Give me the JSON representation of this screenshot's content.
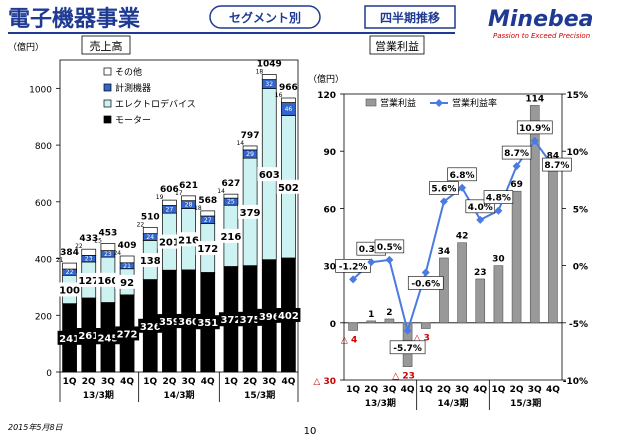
{
  "header": {
    "title": "電子機器事業",
    "segment_label": "セグメント別",
    "period_label": "四半期推移",
    "logo_name": "Minebea",
    "logo_tagline": "Passion to Exceed Precision",
    "accent_color": "#1f3a93"
  },
  "footer": {
    "date": "2015年5月8日",
    "page_number": "10"
  },
  "quarter_labels": [
    "1Q",
    "2Q",
    "3Q",
    "4Q",
    "1Q",
    "2Q",
    "3Q",
    "4Q",
    "1Q",
    "2Q",
    "3Q",
    "4Q"
  ],
  "fiscal_year_labels": [
    "13/3期",
    "14/3期",
    "15/3期"
  ],
  "chart_data": [
    {
      "type": "bar",
      "stacked": true,
      "title": "売上高",
      "ylabel": "（億円）",
      "ylim": [
        0,
        1100
      ],
      "yticks": [
        0,
        200,
        400,
        600,
        800,
        1000
      ],
      "categories": [
        "13/3期 1Q",
        "13/3期 2Q",
        "13/3期 3Q",
        "13/3期 4Q",
        "14/3期 1Q",
        "14/3期 2Q",
        "14/3期 3Q",
        "14/3期 4Q",
        "15/3期 1Q",
        "15/3期 2Q",
        "15/3期 3Q",
        "15/3期 4Q"
      ],
      "series": [
        {
          "name": "モーター",
          "color": "#000000",
          "values": [
            241,
            261,
            245,
            272,
            326,
            359,
            360,
            351,
            372,
            375,
            396,
            402
          ]
        },
        {
          "name": "エレクトロデバイス",
          "color": "#ccf2f2",
          "values": [
            100,
            127,
            160,
            92,
            138,
            201,
            216,
            172,
            216,
            379,
            603,
            502
          ]
        },
        {
          "name": "計測機器",
          "color": "#3366cc",
          "values": [
            22,
            23,
            23,
            21,
            24,
            27,
            28,
            27,
            25,
            29,
            32,
            46
          ]
        },
        {
          "name": "その他",
          "color": "#ffffff",
          "values": [
            21,
            22,
            25,
            24,
            22,
            19,
            17,
            18,
            14,
            14,
            18,
            16
          ]
        }
      ],
      "totals": [
        384,
        433,
        453,
        409,
        510,
        606,
        621,
        568,
        627,
        797,
        1049,
        966
      ],
      "legend": [
        "その他",
        "計測機器",
        "エレクトロデバイス",
        "モーター"
      ],
      "legend_position": "top-left"
    },
    {
      "type": "bar+line",
      "title": "営業利益",
      "ylabel": "（億円）",
      "ylim": [
        -30,
        120
      ],
      "yticks": [
        -30,
        0,
        30,
        60,
        90,
        120
      ],
      "ytick_labels": [
        "△ 30",
        "0",
        "30",
        "60",
        "90",
        "120"
      ],
      "y2lim": [
        -10,
        15
      ],
      "y2ticks": [
        "-10%",
        "-5%",
        "0%",
        "5%",
        "10%",
        "15%"
      ],
      "categories": [
        "13/3期 1Q",
        "13/3期 2Q",
        "13/3期 3Q",
        "13/3期 4Q",
        "14/3期 1Q",
        "14/3期 2Q",
        "14/3期 3Q",
        "14/3期 4Q",
        "15/3期 1Q",
        "15/3期 2Q",
        "15/3期 3Q",
        "15/3期 4Q"
      ],
      "series": [
        {
          "name": "営業利益",
          "type": "bar",
          "color": "#999999",
          "values": [
            -4,
            1,
            2,
            -23,
            -3,
            34,
            42,
            23,
            30,
            69,
            114,
            84
          ],
          "labels": [
            "△ 4",
            "1",
            "2",
            "△ 23",
            "△ 3",
            "34",
            "42",
            "23",
            "30",
            "69",
            "114",
            "84"
          ]
        },
        {
          "name": "営業利益率",
          "type": "line",
          "color": "#4a7be0",
          "values": [
            -1.2,
            0.3,
            0.5,
            -5.7,
            -0.6,
            5.6,
            6.8,
            4.0,
            4.8,
            8.7,
            10.9,
            8.7
          ],
          "labels": [
            "-1.2%",
            "0.3%",
            "0.5%",
            "-5.7%",
            "-0.6%",
            "5.6%",
            "6.8%",
            "4.0%",
            "4.8%",
            "8.7%",
            "10.9%",
            "8.7%"
          ]
        }
      ],
      "legend": [
        "営業利益",
        "営業利益率"
      ],
      "legend_position": "top-left"
    }
  ]
}
